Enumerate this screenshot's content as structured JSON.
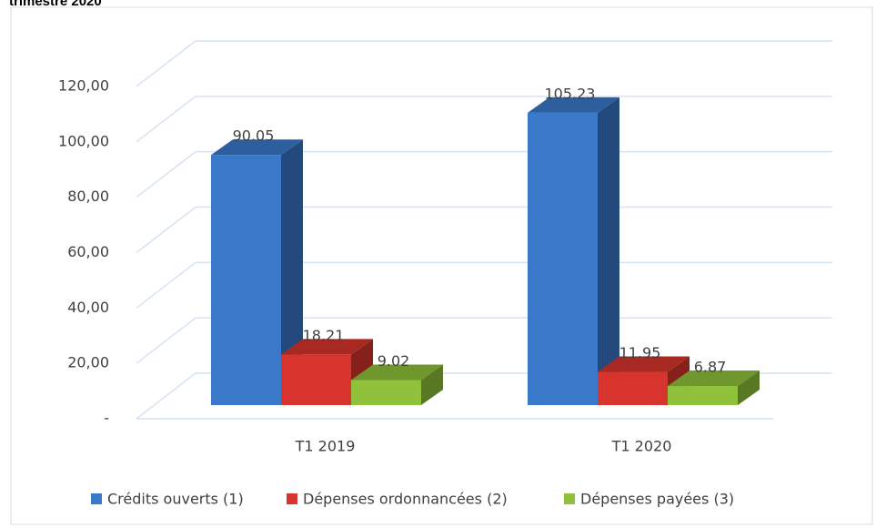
{
  "chart_data": {
    "type": "bar3d",
    "title": "trimestre 2020",
    "categories": [
      "T1 2019",
      "T1 2020"
    ],
    "series": [
      {
        "name": "Crédits ouverts (1)",
        "color": "#3a78c9",
        "values": [
          90.05,
          105.23
        ]
      },
      {
        "name": "Dépenses ordonnancées (2)",
        "color": "#d6342c",
        "values": [
          18.21,
          11.95
        ]
      },
      {
        "name": "Dépenses payées (3)",
        "color": "#8fc13a",
        "values": [
          9.02,
          6.87
        ]
      }
    ],
    "ylim": [
      0,
      120
    ],
    "yticks": [
      {
        "value": 0,
        "label": "-"
      },
      {
        "value": 20,
        "label": "20,00"
      },
      {
        "value": 40,
        "label": "40,00"
      },
      {
        "value": 60,
        "label": "60,00"
      },
      {
        "value": 80,
        "label": "80,00"
      },
      {
        "value": 100,
        "label": "100,00"
      },
      {
        "value": 120,
        "label": "120,00"
      }
    ],
    "grid": true,
    "legend": "bottom"
  }
}
